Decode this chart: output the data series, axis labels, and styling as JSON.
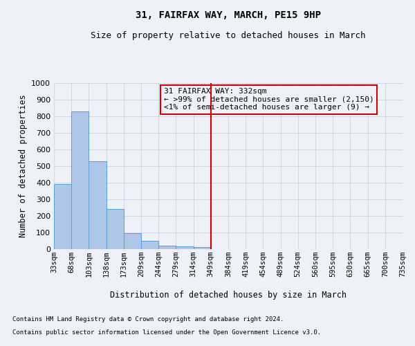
{
  "title1": "31, FAIRFAX WAY, MARCH, PE15 9HP",
  "title2": "Size of property relative to detached houses in March",
  "xlabel": "Distribution of detached houses by size in March",
  "ylabel": "Number of detached properties",
  "bar_values": [
    390,
    828,
    530,
    242,
    97,
    52,
    20,
    16,
    11,
    0,
    0,
    0,
    0,
    0,
    0,
    0,
    0,
    0,
    0,
    0
  ],
  "bar_labels": [
    "33sqm",
    "68sqm",
    "103sqm",
    "138sqm",
    "173sqm",
    "209sqm",
    "244sqm",
    "279sqm",
    "314sqm",
    "349sqm",
    "384sqm",
    "419sqm",
    "454sqm",
    "489sqm",
    "524sqm",
    "560sqm",
    "595sqm",
    "630sqm",
    "665sqm",
    "700sqm",
    "735sqm"
  ],
  "bar_color": "#aec6e8",
  "bar_edge_color": "#5a9fd4",
  "grid_color": "#d0d8e8",
  "vline_x": 8.5,
  "vline_color": "#cc0000",
  "annotation_line1": "31 FAIRFAX WAY: 332sqm",
  "annotation_line2": "← >99% of detached houses are smaller (2,150)",
  "annotation_line3": "<1% of semi-detached houses are larger (9) →",
  "annotation_box_color": "#cc0000",
  "ylim": [
    0,
    1000
  ],
  "yticks": [
    0,
    100,
    200,
    300,
    400,
    500,
    600,
    700,
    800,
    900,
    1000
  ],
  "footnote1": "Contains HM Land Registry data © Crown copyright and database right 2024.",
  "footnote2": "Contains public sector information licensed under the Open Government Licence v3.0.",
  "bg_color": "#eef2f8",
  "axes_bg_color": "#eef2f8"
}
